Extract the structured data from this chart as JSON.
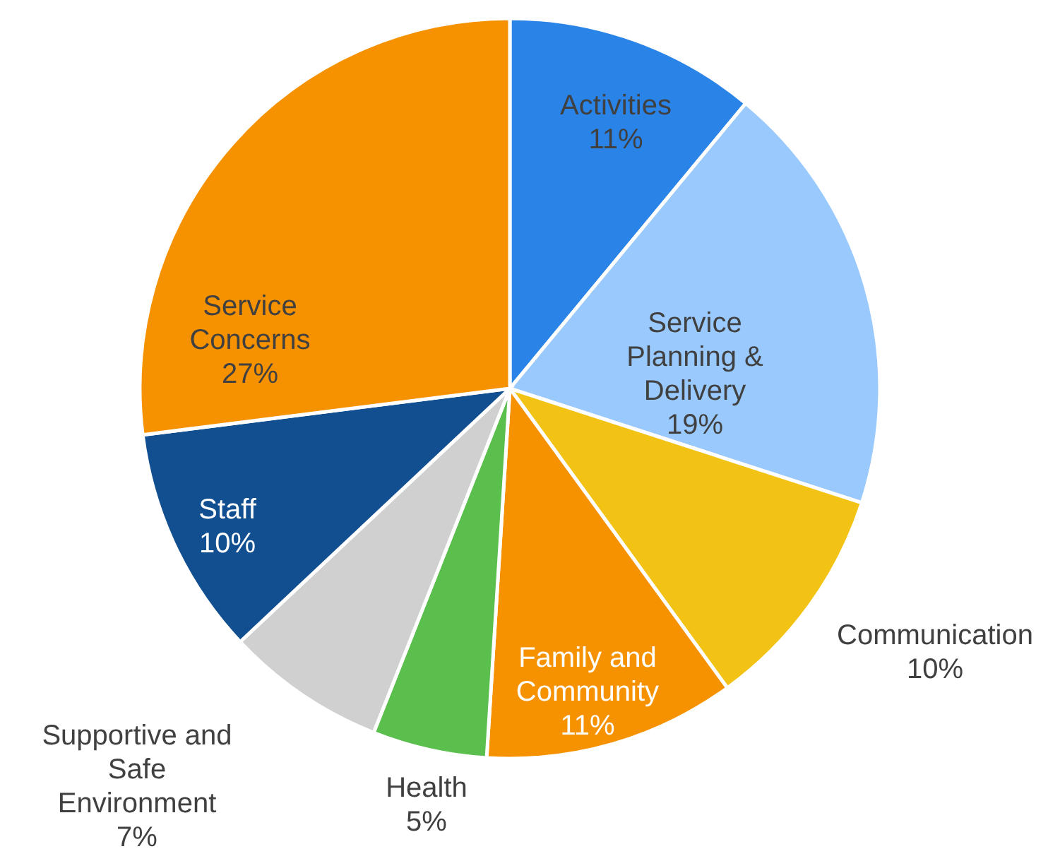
{
  "chart_data": {
    "type": "pie",
    "categories": [
      "Activities",
      "Service\nPlanning &\nDelivery",
      "Communication",
      "Family and\nCommunity",
      "Health",
      "Supportive and\nSafe\nEnvironment",
      "Staff",
      "Service\nConcerns"
    ],
    "values": [
      11,
      19,
      10,
      11,
      5,
      7,
      10,
      27
    ],
    "value_labels": [
      "11%",
      "19%",
      "10%",
      "11%",
      "5%",
      "7%",
      "10%",
      "27%"
    ],
    "colors": [
      "#2a84e8",
      "#99c9fd",
      "#f2c314",
      "#f69200",
      "#5bbf4e",
      "#d0d0d0",
      "#124f91",
      "#f69200"
    ],
    "legend": false
  }
}
